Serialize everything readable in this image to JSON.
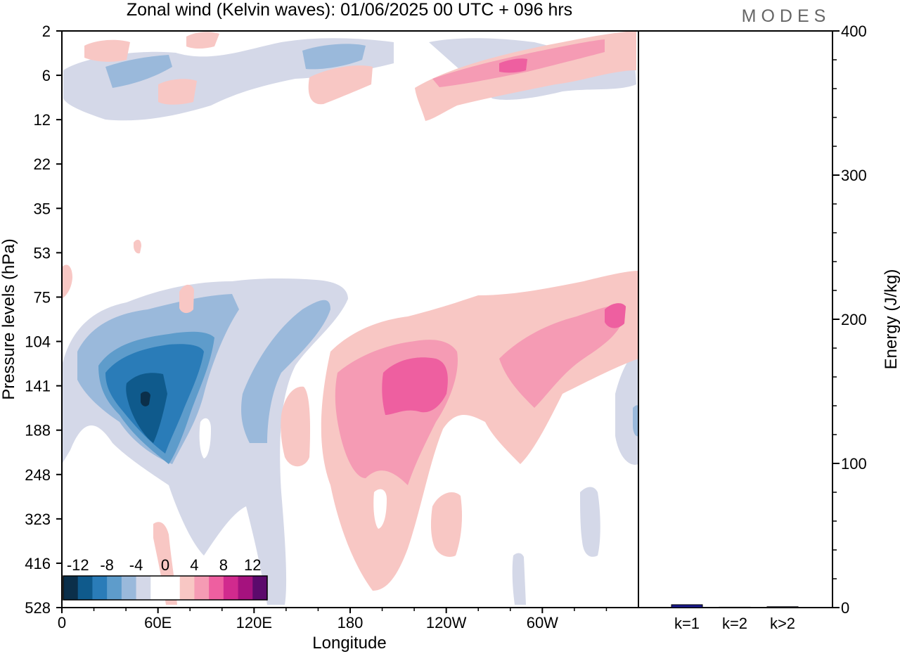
{
  "title": "Zonal wind (Kelvin waves):  01/06/2025  00 UTC  + 096 hrs",
  "logo": "MODES",
  "chart_data": [
    {
      "type": "heatmap",
      "xlabel": "Longitude",
      "ylabel": "Pressure levels (hPa)",
      "x_ticks": [
        "0",
        "60E",
        "120E",
        "180",
        "120W",
        "60W"
      ],
      "y_ticks": [
        "2",
        "6",
        "12",
        "22",
        "35",
        "53",
        "75",
        "104",
        "141",
        "188",
        "248",
        "323",
        "416",
        "528"
      ],
      "colorbar": {
        "tick_labels": [
          "-12",
          "-8",
          "-4",
          "0",
          "4",
          "8",
          "12"
        ],
        "colors": [
          "#0b2f4a",
          "#0f5a8c",
          "#2a7cb8",
          "#5e9ccb",
          "#9ab9db",
          "#d4d8e8",
          "#ffffff",
          "#ffffff",
          "#f8c7c4",
          "#f59bb4",
          "#ee5fa0",
          "#d12a8e",
          "#a5127e",
          "#5c0a6c"
        ]
      },
      "features": [
        {
          "sign": "negative",
          "lon": 50,
          "p": 141,
          "value": -14
        },
        {
          "sign": "positive",
          "lon": 200,
          "p": 141,
          "value": 8
        },
        {
          "sign": "positive",
          "lon": 285,
          "p": 6,
          "value": 8
        }
      ]
    },
    {
      "type": "bar",
      "categories": [
        "k=1",
        "k=2",
        "k>2"
      ],
      "values": [
        2,
        0.3,
        0.6
      ],
      "ylabel": "Energy (J/kg)",
      "y_ticks": [
        "0",
        "100",
        "200",
        "300",
        "400"
      ],
      "ylim": [
        0,
        400
      ],
      "bar_color": "#1a1a8c"
    }
  ]
}
